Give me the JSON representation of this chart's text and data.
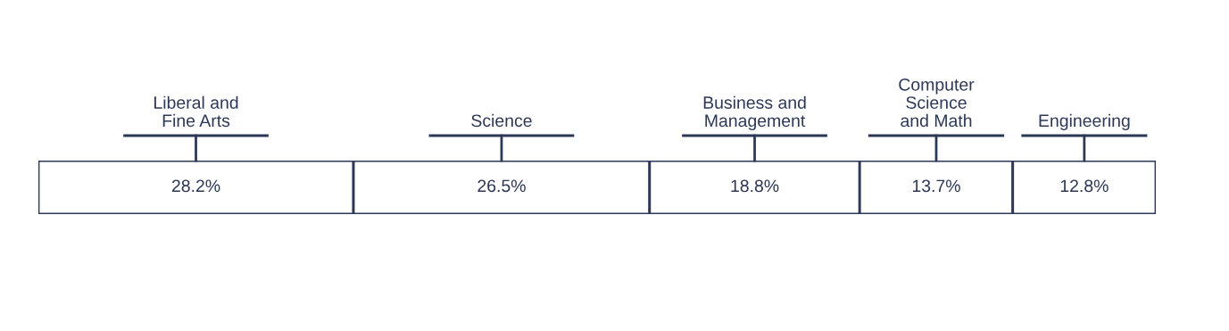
{
  "chart_data": {
    "type": "bar",
    "orientation": "horizontal",
    "stacked": true,
    "categories": [
      null
    ],
    "tick_labels": false,
    "legend": false,
    "grid": false,
    "series": [
      {
        "name": "Liberal and\nFine Arts",
        "color": "#ffffff",
        "values": [
          28.2
        ],
        "value_labels": [
          "28.2%"
        ]
      },
      {
        "name": "Science",
        "color": "#ffffff",
        "values": [
          26.5
        ],
        "value_labels": [
          "26.5%"
        ]
      },
      {
        "name": "Business and\nManagement",
        "color": "#ffffff",
        "values": [
          18.8
        ],
        "value_labels": [
          "18.8%"
        ]
      },
      {
        "name": "Computer\nScience\nand Math",
        "color": "#ffffff",
        "values": [
          13.7
        ],
        "value_labels": [
          "13.7%"
        ]
      },
      {
        "name": "Engineering",
        "color": "#ffffff",
        "values": [
          12.8
        ],
        "value_labels": [
          "12.8%"
        ]
      }
    ]
  }
}
